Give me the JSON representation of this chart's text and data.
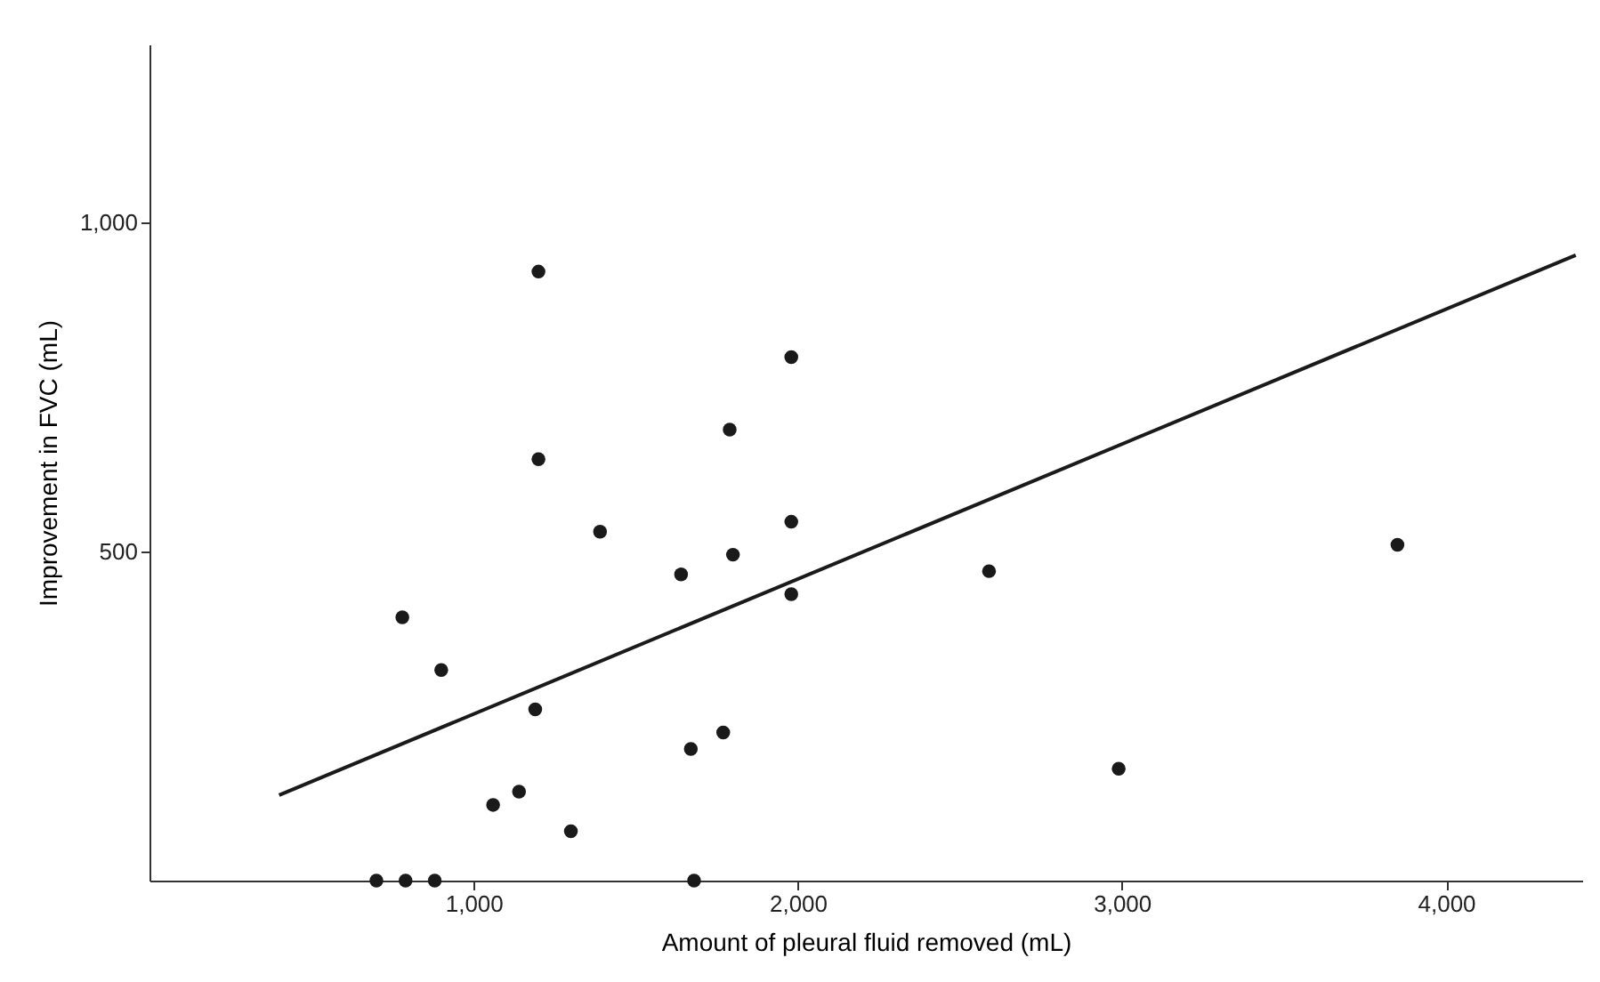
{
  "chart_data": {
    "type": "scatter",
    "xlabel": "Amount of pleural fluid removed (mL)",
    "ylabel": "Improvement in FVC (mL)",
    "xlim": [
      0,
      4420
    ],
    "ylim": [
      0,
      1270
    ],
    "xticks": [
      {
        "value": 1000,
        "label": "1,000"
      },
      {
        "value": 2000,
        "label": "2,000"
      },
      {
        "value": 3000,
        "label": "3,000"
      },
      {
        "value": 4000,
        "label": "4,000"
      }
    ],
    "yticks": [
      {
        "value": 500,
        "label": "500"
      },
      {
        "value": 1000,
        "label": "1,000"
      }
    ],
    "grid": false,
    "series": [
      {
        "marker": "circle",
        "color": "#1a1a1a",
        "x": [
          700,
          790,
          880,
          780,
          900,
          1060,
          1140,
          1190,
          1200,
          1200,
          1300,
          1390,
          1640,
          1670,
          1680,
          1770,
          1790,
          1800,
          1980,
          1980,
          1980,
          2590,
          2990,
          3850
        ],
        "values": [
          0,
          0,
          0,
          400,
          320,
          115,
          135,
          260,
          925,
          640,
          75,
          530,
          465,
          200,
          0,
          225,
          685,
          495,
          795,
          545,
          435,
          470,
          170,
          510
        ]
      },
      {
        "type": "line",
        "color": "#1a1a1a",
        "line_style": "solid",
        "x": [
          400,
          4400
        ],
        "values": [
          130,
          950
        ]
      }
    ]
  }
}
